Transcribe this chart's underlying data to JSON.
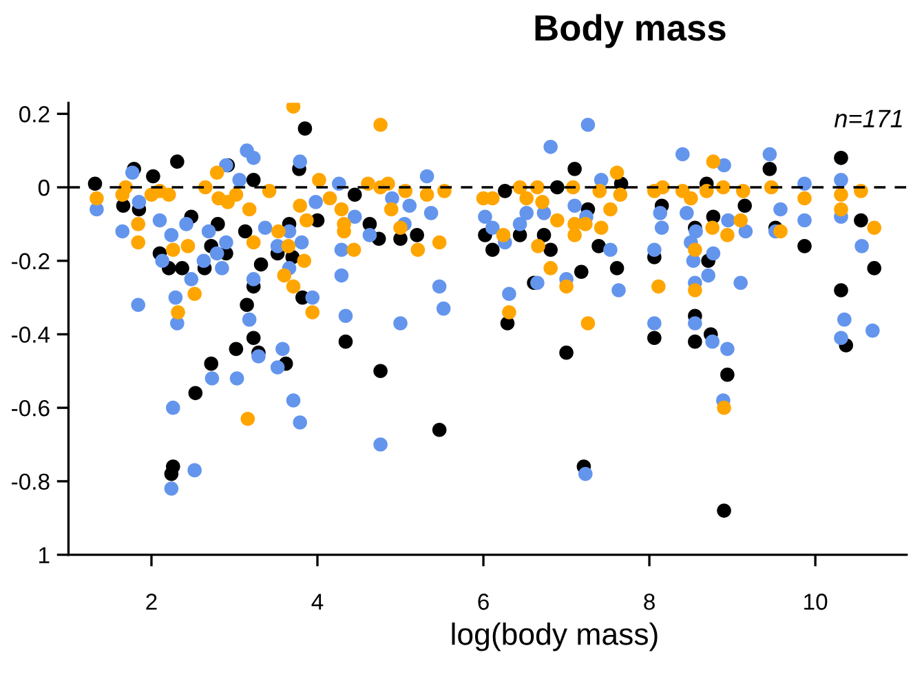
{
  "chart_data": {
    "type": "scatter",
    "title": "Body mass",
    "xlabel": "log(body mass)",
    "annotations": [
      "n=171"
    ],
    "xlim": [
      1,
      11.1
    ],
    "xticks": [
      2,
      4,
      6,
      8,
      10
    ],
    "ylim": [
      -1,
      0.23
    ],
    "yticks": [
      0.2,
      0,
      -0.2,
      -0.4,
      -0.6,
      -0.8,
      {
        "value": -1,
        "label": "1"
      }
    ],
    "grid": false,
    "legend": false,
    "marker": "circle",
    "ref_lines": [
      {
        "axis": "y",
        "value": 0,
        "label": null,
        "color": "#000000",
        "line_style": "dashed"
      }
    ],
    "series": [
      {
        "color": "#000000",
        "x": [
          1.32,
          1.66,
          1.79,
          2.02,
          2.31,
          2.92,
          3.23,
          3.85,
          3.78,
          4.45,
          4.63,
          4.74,
          5.0,
          5.2,
          4.0,
          2.1,
          2.21,
          2.37,
          2.64,
          2.72,
          2.9,
          3.13,
          3.32,
          3.52,
          3.7,
          3.82,
          3.23,
          3.15,
          3.23,
          3.02,
          4.34,
          1.85,
          3.66,
          2.48,
          2.8,
          2.72,
          3.29,
          3.62,
          2.53,
          2.26,
          2.24,
          4.76,
          5.47,
          6.26,
          6.89,
          7.1,
          7.26,
          6.02,
          6.11,
          6.44,
          6.73,
          6.81,
          7.39,
          7.18,
          7.61,
          6.61,
          6.29,
          7.0,
          7.66,
          8.15,
          8.06,
          8.06,
          8.55,
          8.55,
          8.71,
          8.77,
          8.69,
          9.15,
          9.45,
          9.52,
          9.87,
          10.31,
          10.55,
          10.71,
          10.31,
          10.37,
          8.55,
          8.74,
          8.94,
          7.21,
          8.9
        ],
        "values": [
          0.01,
          -0.05,
          0.05,
          0.03,
          0.07,
          0.06,
          0.02,
          0.16,
          0.05,
          -0.02,
          -0.1,
          -0.14,
          -0.14,
          -0.13,
          -0.09,
          -0.18,
          -0.22,
          -0.22,
          -0.22,
          -0.16,
          -0.18,
          -0.12,
          -0.21,
          -0.18,
          -0.19,
          -0.3,
          -0.27,
          -0.32,
          -0.41,
          -0.44,
          -0.42,
          -0.06,
          -0.1,
          -0.08,
          -0.1,
          -0.48,
          -0.45,
          -0.48,
          -0.56,
          -0.76,
          -0.78,
          -0.5,
          -0.66,
          -0.01,
          0,
          0.05,
          -0.06,
          -0.13,
          -0.17,
          -0.13,
          -0.13,
          -0.17,
          -0.16,
          -0.23,
          -0.22,
          -0.26,
          -0.37,
          -0.45,
          0.01,
          -0.05,
          -0.19,
          -0.41,
          -0.42,
          -0.11,
          -0.2,
          -0.08,
          0.01,
          -0.05,
          0.05,
          -0.11,
          -0.16,
          0.08,
          -0.09,
          -0.22,
          -0.28,
          -0.43,
          -0.35,
          -0.4,
          -0.51,
          -0.76,
          -0.88
        ]
      },
      {
        "color": "#6495ed",
        "x": [
          1.34,
          1.65,
          1.84,
          1.77,
          1.85,
          2.1,
          2.13,
          2.24,
          2.29,
          2.31,
          2.42,
          2.48,
          2.63,
          2.69,
          2.79,
          2.85,
          2.9,
          2.9,
          3.15,
          3.23,
          3.06,
          3.23,
          3.37,
          3.52,
          3.66,
          3.66,
          3.81,
          3.79,
          3.94,
          3.98,
          4.26,
          4.29,
          4.29,
          4.34,
          4.45,
          4.63,
          4.9,
          5.05,
          5.11,
          5.32,
          5.37,
          5.47,
          5.52,
          5.0,
          3.18,
          2.26,
          2.52,
          2.24,
          2.73,
          3.03,
          3.29,
          3.58,
          3.52,
          3.71,
          3.79,
          4.76,
          7.26,
          6.81,
          8.4,
          8.9,
          9.45,
          6.02,
          6.11,
          6.26,
          6.44,
          6.52,
          6.73,
          6.65,
          6.31,
          7.1,
          7.24,
          7.42,
          7.53,
          7.63,
          7.0,
          8.13,
          8.15,
          8.45,
          8.06,
          8.06,
          8.5,
          8.53,
          8.56,
          8.55,
          8.55,
          8.71,
          8.77,
          8.95,
          9.16,
          9.1,
          9.58,
          9.52,
          9.87,
          9.87,
          10.31,
          10.31,
          10.56,
          10.35,
          10.69,
          10.31,
          8.94,
          8.89,
          7.23,
          8.76
        ],
        "values": [
          -0.06,
          -0.12,
          -0.32,
          0.04,
          -0.04,
          -0.09,
          -0.2,
          -0.13,
          -0.3,
          -0.37,
          -0.1,
          -0.25,
          -0.2,
          -0.12,
          -0.18,
          -0.22,
          -0.15,
          0.06,
          0.1,
          0.08,
          0.02,
          -0.25,
          -0.11,
          -0.16,
          -0.12,
          -0.22,
          -0.15,
          0.07,
          -0.3,
          -0.04,
          0.01,
          -0.17,
          -0.24,
          -0.35,
          -0.08,
          -0.13,
          -0.03,
          -0.1,
          -0.05,
          0.03,
          -0.07,
          -0.27,
          -0.33,
          -0.37,
          -0.36,
          -0.6,
          -0.77,
          -0.82,
          -0.52,
          -0.52,
          -0.46,
          -0.44,
          -0.49,
          -0.58,
          -0.64,
          -0.7,
          0.17,
          0.11,
          0.09,
          0.06,
          0.09,
          -0.08,
          -0.11,
          -0.15,
          -0.1,
          -0.07,
          -0.07,
          -0.26,
          -0.29,
          -0.05,
          -0.08,
          0.02,
          -0.17,
          -0.28,
          -0.25,
          -0.07,
          -0.11,
          -0.07,
          -0.17,
          -0.37,
          -0.15,
          -0.2,
          -0.12,
          -0.26,
          -0.37,
          -0.24,
          -0.18,
          -0.09,
          -0.12,
          -0.26,
          -0.06,
          -0.12,
          0.01,
          -0.09,
          0.02,
          -0.08,
          -0.16,
          -0.36,
          -0.39,
          -0.41,
          -0.44,
          -0.58,
          -0.78,
          -0.42
        ]
      },
      {
        "color": "#ffa500",
        "x": [
          1.34,
          1.65,
          1.69,
          1.84,
          1.84,
          2.0,
          2.1,
          2.21,
          2.26,
          2.32,
          2.44,
          2.52,
          2.65,
          2.79,
          2.81,
          2.92,
          3.02,
          3.23,
          3.18,
          3.42,
          3.53,
          3.6,
          3.65,
          3.71,
          3.71,
          3.79,
          3.84,
          3.87,
          3.94,
          4.02,
          4.15,
          4.29,
          4.32,
          4.32,
          4.44,
          4.61,
          4.76,
          4.76,
          4.85,
          4.89,
          5.0,
          5.06,
          5.21,
          5.32,
          5.47,
          5.53,
          3.16,
          6.0,
          6.11,
          6.24,
          6.44,
          6.52,
          6.65,
          6.66,
          6.71,
          6.81,
          6.89,
          7.0,
          7.08,
          7.1,
          7.1,
          7.23,
          7.26,
          7.4,
          7.42,
          7.53,
          7.61,
          7.65,
          6.31,
          8.06,
          8.16,
          8.11,
          8.4,
          8.5,
          8.55,
          8.55,
          8.69,
          8.76,
          8.77,
          8.89,
          8.94,
          9.1,
          9.13,
          9.47,
          9.58,
          9.87,
          10.31,
          10.31,
          10.55,
          10.71,
          8.9
        ],
        "values": [
          -0.03,
          -0.02,
          0,
          -0.1,
          -0.15,
          -0.02,
          -0.01,
          -0.02,
          -0.17,
          -0.34,
          -0.16,
          -0.29,
          0,
          0.04,
          -0.03,
          -0.04,
          -0.02,
          -0.15,
          -0.06,
          -0.01,
          -0.12,
          -0.24,
          -0.16,
          -0.27,
          0.22,
          -0.05,
          -0.2,
          -0.09,
          -0.34,
          0.02,
          -0.03,
          -0.06,
          -0.1,
          -0.12,
          -0.17,
          0.01,
          0.17,
          0,
          0.01,
          -0.06,
          -0.11,
          -0.01,
          -0.17,
          -0.02,
          -0.15,
          -0.01,
          -0.63,
          -0.03,
          -0.03,
          -0.13,
          0,
          -0.03,
          0,
          -0.16,
          -0.04,
          -0.22,
          -0.09,
          -0.27,
          0,
          -0.1,
          -0.13,
          -0.1,
          -0.37,
          -0.01,
          -0.11,
          -0.06,
          0.04,
          -0.02,
          -0.34,
          -0.01,
          0,
          -0.27,
          -0.01,
          -0.03,
          -0.17,
          -0.28,
          -0.01,
          -0.11,
          0.07,
          0,
          -0.13,
          -0.09,
          -0.01,
          0,
          -0.12,
          -0.03,
          -0.02,
          -0.06,
          -0.01,
          -0.11,
          -0.6
        ]
      }
    ]
  }
}
